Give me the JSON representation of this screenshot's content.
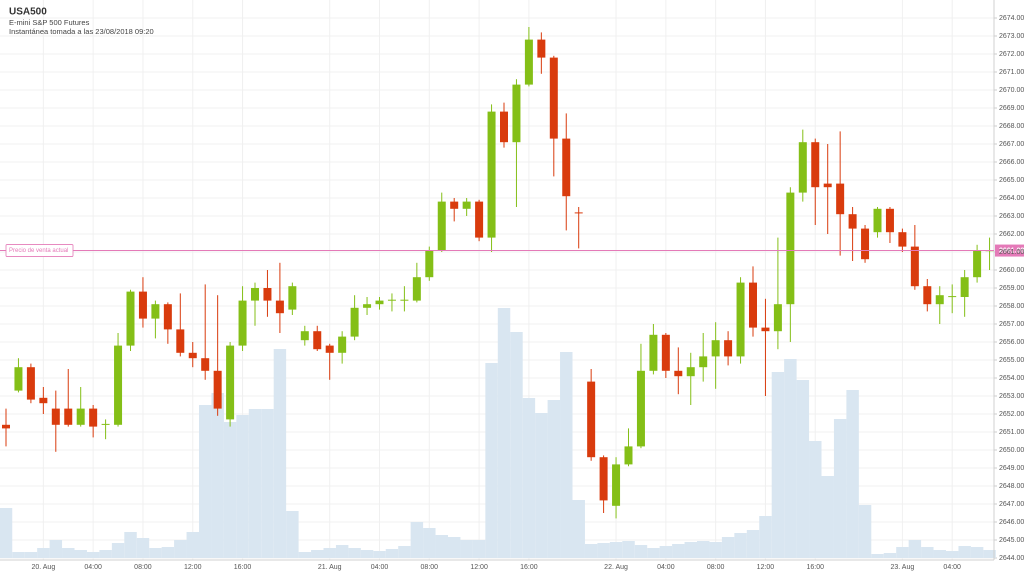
{
  "chart_data": {
    "type": "candlestick",
    "title": "USA500",
    "subtitle": "E-mini S&P 500 Futures",
    "annotation": "Instantánea tomada a las 23/08/2018 09:20",
    "up_color": "#84bf17",
    "down_color": "#d93b0d",
    "volume_color": "#d9e6f1",
    "grid": true,
    "current_price": {
      "label": "Precio de venta actual",
      "value": 2661.08,
      "color": "#e47ab8"
    },
    "categories": [
      null,
      null,
      null,
      "20. Aug",
      null,
      null,
      null,
      "04:00",
      null,
      null,
      null,
      "08:00",
      null,
      null,
      null,
      "12:00",
      null,
      null,
      null,
      "16:00",
      null,
      null,
      null,
      null,
      null,
      null,
      "21. Aug",
      null,
      null,
      null,
      "04:00",
      null,
      null,
      null,
      "08:00",
      null,
      null,
      null,
      "12:00",
      null,
      null,
      null,
      "16:00",
      null,
      null,
      null,
      null,
      null,
      null,
      "22. Aug",
      null,
      null,
      null,
      "04:00",
      null,
      null,
      null,
      "08:00",
      null,
      null,
      null,
      "12:00",
      null,
      null,
      null,
      "16:00",
      null,
      null,
      null,
      null,
      null,
      null,
      "23. Aug",
      null,
      null,
      null,
      "04:00",
      null,
      null,
      null
    ],
    "open": [
      2651.4,
      2653.3,
      2654.6,
      2652.9,
      2652.3,
      2652.3,
      2651.4,
      2652.3,
      2651.4,
      2651.4,
      2655.8,
      2658.8,
      2657.3,
      2658.1,
      2656.7,
      2655.4,
      2655.1,
      2654.4,
      2651.7,
      2655.8,
      2658.3,
      2659.0,
      2658.3,
      2657.8,
      2656.1,
      2656.6,
      2655.8,
      2655.4,
      2656.3,
      2657.9,
      2658.1,
      2658.3,
      2658.3,
      2658.3,
      2659.6,
      2661.1,
      2663.8,
      2663.4,
      2663.8,
      2661.8,
      2668.8,
      2667.1,
      2670.3,
      2672.8,
      2671.8,
      2667.3,
      2663.2,
      2653.8,
      2649.6,
      2646.9,
      2649.2,
      2650.2,
      2654.4,
      2656.4,
      2654.4,
      2654.1,
      2654.6,
      2655.2,
      2656.1,
      2655.2,
      2659.3,
      2656.8,
      2656.6,
      2658.1,
      2664.3,
      2667.1,
      2664.8,
      2664.8,
      2663.1,
      2662.3,
      2662.1,
      2663.4,
      2662.1,
      2661.3,
      2659.1,
      2658.1,
      2658.5,
      2658.5,
      2659.6,
      2661.05
    ],
    "high": [
      2652.3,
      2655.1,
      2654.8,
      2653.5,
      2653.3,
      2654.5,
      2653.5,
      2652.5,
      2651.7,
      2656.5,
      2658.9,
      2659.6,
      2658.3,
      2658.2,
      2658.7,
      2656.0,
      2659.2,
      2658.6,
      2656.0,
      2659.1,
      2659.3,
      2660.0,
      2660.4,
      2659.3,
      2656.9,
      2656.9,
      2655.9,
      2656.6,
      2658.6,
      2658.5,
      2658.5,
      2658.7,
      2659.1,
      2660.4,
      2661.3,
      2664.3,
      2664.0,
      2664.0,
      2663.9,
      2669.2,
      2669.3,
      2670.6,
      2673.5,
      2673.2,
      2671.9,
      2668.7,
      2663.5,
      2654.5,
      2649.7,
      2649.6,
      2651.2,
      2655.9,
      2657.0,
      2656.5,
      2655.7,
      2655.4,
      2656.5,
      2657.1,
      2656.6,
      2659.6,
      2660.2,
      2658.4,
      2661.8,
      2664.6,
      2667.8,
      2667.3,
      2667.0,
      2667.7,
      2663.5,
      2662.5,
      2663.5,
      2663.5,
      2662.3,
      2662.5,
      2659.5,
      2659.1,
      2659.2,
      2660.0,
      2661.4,
      2661.8
    ],
    "low": [
      2650.2,
      2653.2,
      2652.6,
      2652.0,
      2649.9,
      2651.3,
      2651.3,
      2650.7,
      2650.6,
      2651.3,
      2655.5,
      2656.8,
      2656.2,
      2655.9,
      2655.2,
      2654.6,
      2653.9,
      2651.9,
      2651.3,
      2655.5,
      2656.9,
      2657.4,
      2656.5,
      2657.5,
      2655.8,
      2655.5,
      2653.9,
      2654.8,
      2656.1,
      2657.5,
      2657.8,
      2657.7,
      2657.7,
      2658.2,
      2659.4,
      2661.0,
      2662.7,
      2663.0,
      2661.6,
      2661.0,
      2666.8,
      2663.5,
      2670.2,
      2670.9,
      2665.2,
      2662.2,
      2661.2,
      2649.4,
      2646.5,
      2646.2,
      2649.1,
      2650.1,
      2654.2,
      2654.0,
      2653.1,
      2652.5,
      2653.8,
      2653.4,
      2654.7,
      2654.8,
      2656.3,
      2653.0,
      2655.6,
      2656.0,
      2663.8,
      2662.5,
      2662.0,
      2660.8,
      2660.5,
      2660.4,
      2661.8,
      2661.5,
      2661.0,
      2658.9,
      2657.7,
      2657.0,
      2657.6,
      2657.4,
      2659.3,
      2660.0
    ],
    "close": [
      2651.2,
      2654.6,
      2652.8,
      2652.6,
      2651.4,
      2651.4,
      2652.3,
      2651.3,
      2651.45,
      2655.8,
      2658.8,
      2657.3,
      2658.1,
      2656.7,
      2655.4,
      2655.1,
      2654.4,
      2652.3,
      2655.8,
      2658.3,
      2659.0,
      2658.3,
      2657.6,
      2659.1,
      2656.6,
      2655.6,
      2655.4,
      2656.3,
      2657.9,
      2658.1,
      2658.3,
      2658.35,
      2658.35,
      2659.6,
      2661.1,
      2663.8,
      2663.4,
      2663.8,
      2661.8,
      2668.8,
      2667.1,
      2670.3,
      2672.8,
      2671.8,
      2667.3,
      2664.1,
      2663.15,
      2649.6,
      2647.2,
      2649.2,
      2650.2,
      2654.4,
      2656.4,
      2654.4,
      2654.1,
      2654.6,
      2655.2,
      2656.1,
      2655.2,
      2659.3,
      2656.8,
      2656.6,
      2658.1,
      2664.3,
      2667.1,
      2664.6,
      2664.6,
      2663.1,
      2662.3,
      2660.6,
      2663.4,
      2662.1,
      2661.3,
      2659.1,
      2658.1,
      2658.6,
      2658.55,
      2659.6,
      2661.1,
      2661.1
    ],
    "volume": [
      50,
      6,
      6,
      10,
      18,
      10,
      8,
      6,
      8,
      15,
      26,
      20,
      10,
      11,
      18,
      26,
      153,
      165,
      136,
      143,
      149,
      149,
      209,
      47,
      6,
      8,
      10,
      13,
      10,
      8,
      7,
      9,
      12,
      36,
      30,
      23,
      21,
      18,
      18,
      195,
      250,
      226,
      160,
      145,
      158,
      206,
      58,
      14,
      15,
      16,
      17,
      13,
      10,
      12,
      14,
      16,
      17,
      16,
      21,
      25,
      28,
      42,
      186,
      199,
      178,
      117,
      82,
      139,
      168,
      53,
      4,
      5,
      11,
      18,
      11,
      8,
      7,
      12,
      11,
      8
    ],
    "ylim": [
      2644,
      2675
    ],
    "yticks": [
      {
        "value": 2644,
        "label": "2644.00"
      },
      {
        "value": 2645,
        "label": "2645.00"
      },
      {
        "value": 2646,
        "label": "2646.00"
      },
      {
        "value": 2647,
        "label": "2647.00"
      },
      {
        "value": 2648,
        "label": "2648.00"
      },
      {
        "value": 2649,
        "label": "2649.00"
      },
      {
        "value": 2650,
        "label": "2650.00"
      },
      {
        "value": 2651,
        "label": "2651.00"
      },
      {
        "value": 2652,
        "label": "2652.00"
      },
      {
        "value": 2653,
        "label": "2653.00"
      },
      {
        "value": 2654,
        "label": "2654.00"
      },
      {
        "value": 2655,
        "label": "2655.00"
      },
      {
        "value": 2656,
        "label": "2656.00"
      },
      {
        "value": 2657,
        "label": "2657.00"
      },
      {
        "value": 2658,
        "label": "2658.00"
      },
      {
        "value": 2659,
        "label": "2659.00"
      },
      {
        "value": 2660,
        "label": "2660.00"
      },
      {
        "value": 2661,
        "label": "2661.00"
      },
      {
        "value": 2662,
        "label": "2662.00"
      },
      {
        "value": 2663,
        "label": "2663.00"
      },
      {
        "value": 2664,
        "label": "2664.00"
      },
      {
        "value": 2665,
        "label": "2665.00"
      },
      {
        "value": 2666,
        "label": "2666.00"
      },
      {
        "value": 2667,
        "label": "2667.00"
      },
      {
        "value": 2668,
        "label": "2668.00"
      },
      {
        "value": 2669,
        "label": "2669.00"
      },
      {
        "value": 2670,
        "label": "2670.00"
      },
      {
        "value": 2671,
        "label": "2671.00"
      },
      {
        "value": 2672,
        "label": "2672.00"
      },
      {
        "value": 2673,
        "label": "2673.00"
      },
      {
        "value": 2674,
        "label": "2674.00"
      }
    ]
  }
}
